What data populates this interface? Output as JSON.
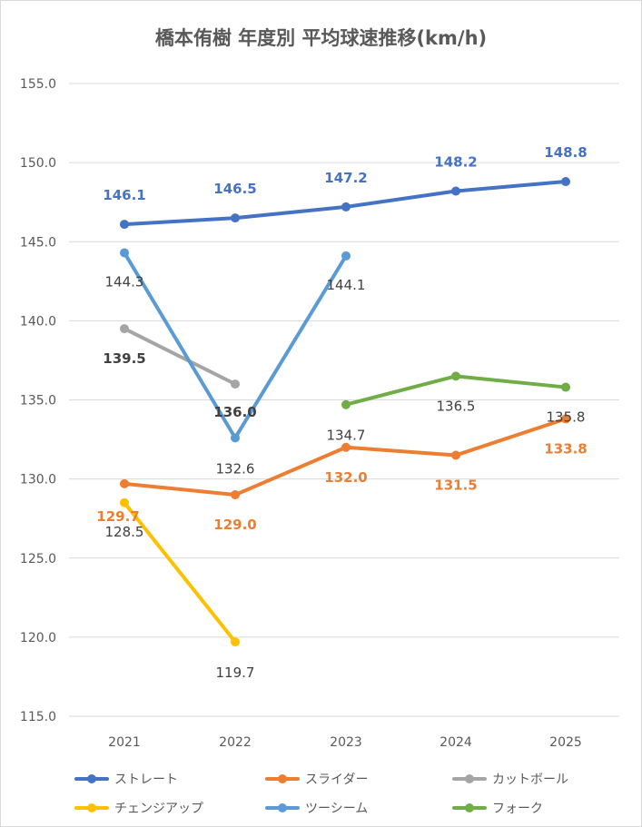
{
  "chart_data": {
    "type": "line",
    "title": "橋本侑樹 年度別 平均球速推移(km/h)",
    "categories": [
      "2021",
      "2022",
      "2023",
      "2024",
      "2025"
    ],
    "ylim": [
      115,
      155
    ],
    "yticks": [
      "115.0",
      "120.0",
      "125.0",
      "130.0",
      "135.0",
      "140.0",
      "145.0",
      "150.0",
      "155.0"
    ],
    "grid": true,
    "legend_position": "bottom",
    "series": [
      {
        "name": "ストレート",
        "color": "#4472c4",
        "values": [
          146.1,
          146.5,
          147.2,
          148.2,
          148.8
        ],
        "labels": [
          "146.1",
          "146.5",
          "147.2",
          "148.2",
          "148.8"
        ]
      },
      {
        "name": "スライダー",
        "color": "#ed7d31",
        "values": [
          129.7,
          129.0,
          132.0,
          131.5,
          133.8
        ],
        "labels": [
          "129.7",
          "129.0",
          "132.0",
          "131.5",
          "133.8"
        ]
      },
      {
        "name": "カットボール",
        "color": "#a5a5a5",
        "values": [
          139.5,
          136.0,
          null,
          null,
          null
        ],
        "labels": [
          "139.5",
          "136.0",
          null,
          null,
          null
        ]
      },
      {
        "name": "チェンジアップ",
        "color": "#ffc000",
        "values": [
          128.5,
          119.7,
          null,
          null,
          null
        ],
        "labels": [
          "128.5",
          "119.7",
          null,
          null,
          null
        ]
      },
      {
        "name": "ツーシーム",
        "color": "#5b9bd5",
        "values": [
          144.3,
          132.6,
          144.1,
          null,
          null
        ],
        "labels": [
          "144.3",
          "132.6",
          "144.1",
          null,
          null
        ]
      },
      {
        "name": "フォーク",
        "color": "#70ad47",
        "values": [
          null,
          null,
          134.7,
          136.5,
          135.8
        ],
        "labels": [
          null,
          null,
          "134.7",
          "136.5",
          "135.8"
        ]
      }
    ]
  }
}
